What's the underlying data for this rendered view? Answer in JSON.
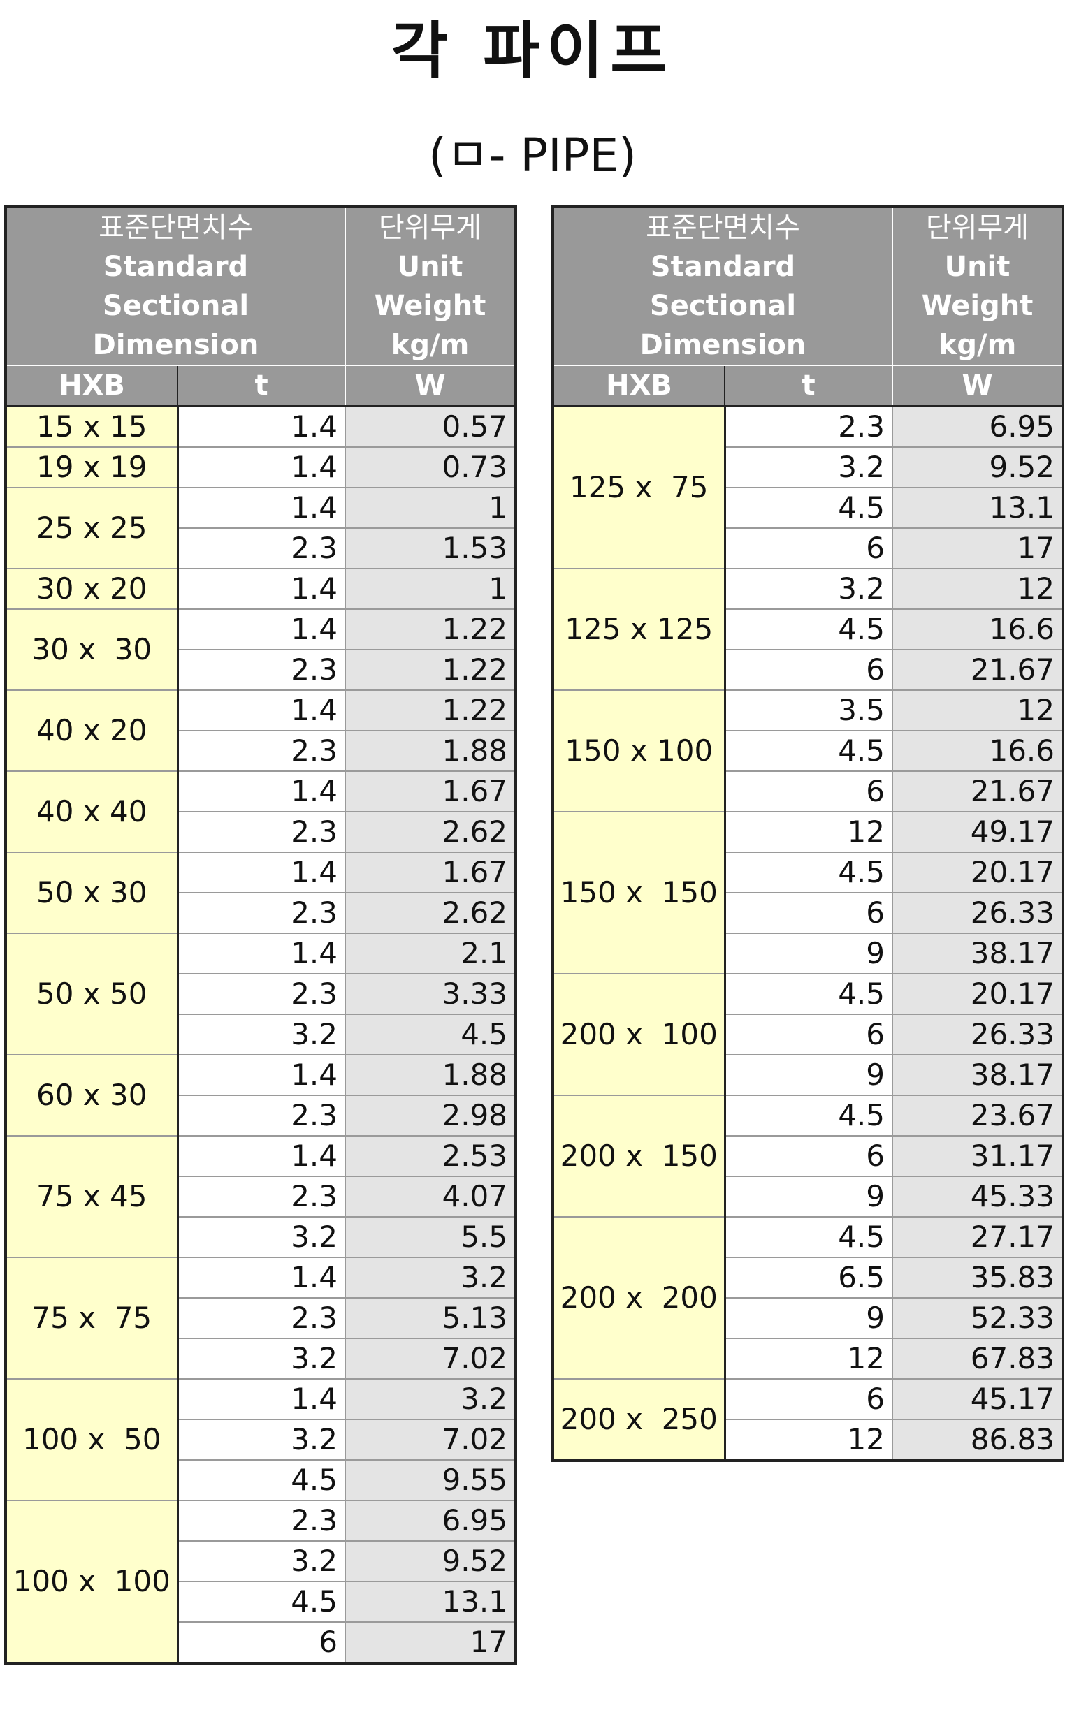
{
  "title": "각 파이프",
  "subtitle": "(ㅁ- PIPE)",
  "header": {
    "ko": "표준단면치수",
    "en1": "Standard",
    "en2": "Sectional",
    "en3": "Dimension",
    "unit_ko": "단위무게",
    "unit1": "Unit",
    "unit2": "Weight",
    "unit3": "kg/m",
    "col_hxb": "HXB",
    "col_t": "t",
    "col_w": "W"
  },
  "left_table": [
    {
      "dim": "15 x 15",
      "rows": [
        [
          "1.4",
          "0.57"
        ]
      ]
    },
    {
      "dim": "19 x 19",
      "rows": [
        [
          "1.4",
          "0.73"
        ]
      ]
    },
    {
      "dim": "25 x 25",
      "rows": [
        [
          "1.4",
          "1"
        ],
        [
          "2.3",
          "1.53"
        ]
      ]
    },
    {
      "dim": "30 x 20",
      "rows": [
        [
          "1.4",
          "1"
        ]
      ]
    },
    {
      "dim": "30 x  30",
      "rows": [
        [
          "1.4",
          "1.22"
        ],
        [
          "2.3",
          "1.22"
        ]
      ]
    },
    {
      "dim": "40 x 20",
      "rows": [
        [
          "1.4",
          "1.22"
        ],
        [
          "2.3",
          "1.88"
        ]
      ]
    },
    {
      "dim": "40 x 40",
      "rows": [
        [
          "1.4",
          "1.67"
        ],
        [
          "2.3",
          "2.62"
        ]
      ]
    },
    {
      "dim": "50 x 30",
      "rows": [
        [
          "1.4",
          "1.67"
        ],
        [
          "2.3",
          "2.62"
        ]
      ]
    },
    {
      "dim": "50 x 50",
      "rows": [
        [
          "1.4",
          "2.1"
        ],
        [
          "2.3",
          "3.33"
        ],
        [
          "3.2",
          "4.5"
        ]
      ]
    },
    {
      "dim": "60 x 30",
      "rows": [
        [
          "1.4",
          "1.88"
        ],
        [
          "2.3",
          "2.98"
        ]
      ]
    },
    {
      "dim": "75 x 45",
      "rows": [
        [
          "1.4",
          "2.53"
        ],
        [
          "2.3",
          "4.07"
        ],
        [
          "3.2",
          "5.5"
        ]
      ]
    },
    {
      "dim": "75 x  75",
      "rows": [
        [
          "1.4",
          "3.2"
        ],
        [
          "2.3",
          "5.13"
        ],
        [
          "3.2",
          "7.02"
        ]
      ]
    },
    {
      "dim": "100 x  50",
      "rows": [
        [
          "1.4",
          "3.2"
        ],
        [
          "3.2",
          "7.02"
        ],
        [
          "4.5",
          "9.55"
        ]
      ]
    },
    {
      "dim": "100 x  100",
      "rows": [
        [
          "2.3",
          "6.95"
        ],
        [
          "3.2",
          "9.52"
        ],
        [
          "4.5",
          "13.1"
        ],
        [
          "6",
          "17"
        ]
      ]
    }
  ],
  "right_table": [
    {
      "dim": "125 x  75",
      "rows": [
        [
          "2.3",
          "6.95"
        ],
        [
          "3.2",
          "9.52"
        ],
        [
          "4.5",
          "13.1"
        ],
        [
          "6",
          "17"
        ]
      ]
    },
    {
      "dim": "125 x 125",
      "rows": [
        [
          "3.2",
          "12"
        ],
        [
          "4.5",
          "16.6"
        ],
        [
          "6",
          "21.67"
        ]
      ]
    },
    {
      "dim": "150 x 100",
      "rows": [
        [
          "3.5",
          "12"
        ],
        [
          "4.5",
          "16.6"
        ],
        [
          "6",
          "21.67"
        ]
      ]
    },
    {
      "dim": "150 x  150",
      "rows": [
        [
          "12",
          "49.17"
        ],
        [
          "4.5",
          "20.17"
        ],
        [
          "6",
          "26.33"
        ],
        [
          "9",
          "38.17"
        ]
      ]
    },
    {
      "dim": "200 x  100",
      "rows": [
        [
          "4.5",
          "20.17"
        ],
        [
          "6",
          "26.33"
        ],
        [
          "9",
          "38.17"
        ]
      ]
    },
    {
      "dim": "200 x  150",
      "rows": [
        [
          "4.5",
          "23.67"
        ],
        [
          "6",
          "31.17"
        ],
        [
          "9",
          "45.33"
        ]
      ]
    },
    {
      "dim": "200 x  200",
      "rows": [
        [
          "4.5",
          "27.17"
        ],
        [
          "6.5",
          "35.83"
        ],
        [
          "9",
          "52.33"
        ],
        [
          "12",
          "67.83"
        ]
      ]
    },
    {
      "dim": "200 x  250",
      "rows": [
        [
          "6",
          "45.17"
        ],
        [
          "12",
          "86.83"
        ]
      ]
    }
  ]
}
